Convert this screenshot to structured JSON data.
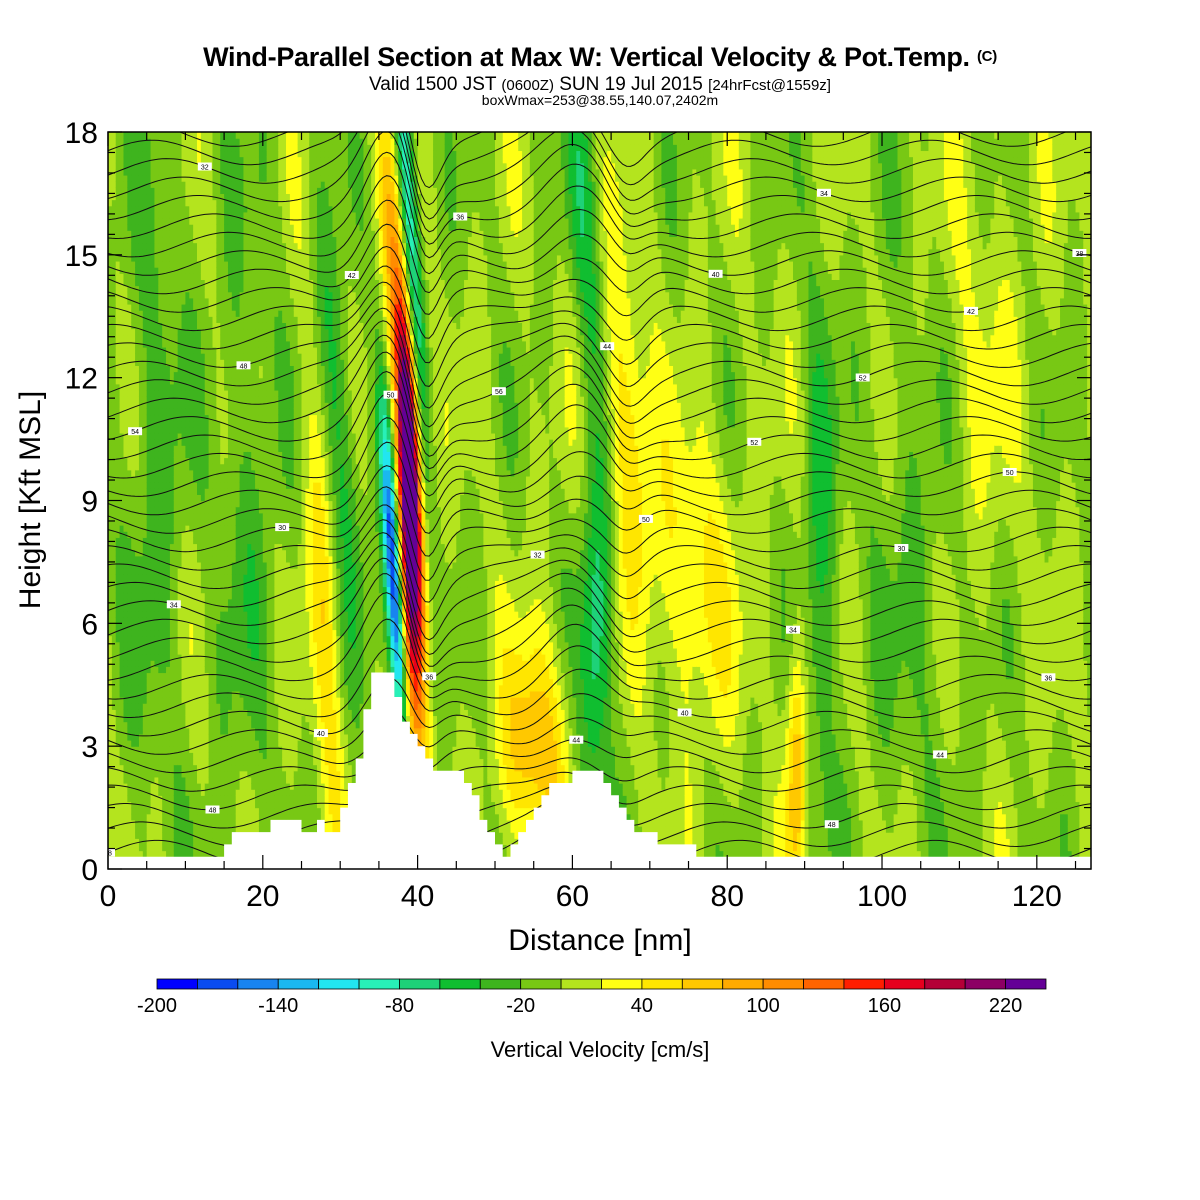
{
  "header": {
    "title": "Wind-Parallel Section at Max W: Vertical Velocity & Pot.Temp.",
    "title_mark": "(C)",
    "valid_prefix": "Valid 1500 JST",
    "valid_utc": "(0600Z)",
    "valid_date": "SUN 19 Jul 2015",
    "forecast": "[24hrFcst@1559z]",
    "box_info": "boxWmax=253@38.55,140.07,2402m"
  },
  "chart_data": {
    "type": "heatmap",
    "xlabel": "Distance [nm]",
    "ylabel": "Height [Kft MSL]",
    "xlim": [
      0,
      127
    ],
    "ylim": [
      0,
      18
    ],
    "x_ticks": [
      0,
      20,
      40,
      60,
      80,
      100,
      120
    ],
    "y_ticks": [
      0,
      3,
      6,
      9,
      12,
      15,
      18
    ],
    "colorbar": {
      "label": "Vertical Velocity [cm/s]",
      "min": -200,
      "max": 260,
      "step": 20,
      "tick_values": [
        -200,
        -140,
        -80,
        -20,
        40,
        100,
        160,
        220
      ],
      "colors": [
        "#0000ff",
        "#0a4cf0",
        "#1884f0",
        "#1ab8f0",
        "#22e6f0",
        "#28f0b8",
        "#1ed278",
        "#10be30",
        "#3eb41e",
        "#78c814",
        "#b4e41e",
        "#ffff14",
        "#ffe600",
        "#ffc800",
        "#ffaa00",
        "#ff8c00",
        "#ff6400",
        "#ff1e00",
        "#e6001e",
        "#b40037",
        "#8c0064",
        "#640096"
      ]
    },
    "terrain": [
      [
        0,
        0.3
      ],
      [
        15,
        0.3
      ],
      [
        15,
        0.6
      ],
      [
        16,
        0.6
      ],
      [
        16,
        0.9
      ],
      [
        21,
        0.9
      ],
      [
        21,
        1.2
      ],
      [
        25,
        1.2
      ],
      [
        25,
        0.9
      ],
      [
        27,
        0.9
      ],
      [
        27,
        1.2
      ],
      [
        28,
        1.2
      ],
      [
        28,
        0.9
      ],
      [
        30,
        0.9
      ],
      [
        30,
        1.5
      ],
      [
        31,
        1.5
      ],
      [
        31,
        2.1
      ],
      [
        32,
        2.1
      ],
      [
        32,
        2.7
      ],
      [
        33,
        2.7
      ],
      [
        33,
        3.9
      ],
      [
        34,
        3.9
      ],
      [
        34,
        4.8
      ],
      [
        37,
        4.8
      ],
      [
        37,
        4.2
      ],
      [
        38,
        4.2
      ],
      [
        38,
        3.6
      ],
      [
        39,
        3.6
      ],
      [
        39,
        3.3
      ],
      [
        40,
        3.3
      ],
      [
        40,
        3.0
      ],
      [
        41,
        3.0
      ],
      [
        41,
        2.7
      ],
      [
        42,
        2.7
      ],
      [
        42,
        2.4
      ],
      [
        46,
        2.4
      ],
      [
        46,
        2.1
      ],
      [
        47,
        2.1
      ],
      [
        47,
        1.8
      ],
      [
        48,
        1.8
      ],
      [
        48,
        1.2
      ],
      [
        49,
        1.2
      ],
      [
        49,
        0.9
      ],
      [
        50,
        0.9
      ],
      [
        50,
        0.6
      ],
      [
        51,
        0.6
      ],
      [
        51,
        0.3
      ],
      [
        52,
        0.3
      ],
      [
        52,
        0.6
      ],
      [
        53,
        0.6
      ],
      [
        53,
        0.9
      ],
      [
        54,
        0.9
      ],
      [
        54,
        1.2
      ],
      [
        55,
        1.2
      ],
      [
        55,
        1.5
      ],
      [
        56,
        1.5
      ],
      [
        56,
        1.8
      ],
      [
        57,
        1.8
      ],
      [
        57,
        2.1
      ],
      [
        60,
        2.1
      ],
      [
        60,
        2.4
      ],
      [
        64,
        2.4
      ],
      [
        64,
        2.1
      ],
      [
        65,
        2.1
      ],
      [
        65,
        1.8
      ],
      [
        66,
        1.8
      ],
      [
        66,
        1.5
      ],
      [
        67,
        1.5
      ],
      [
        67,
        1.2
      ],
      [
        68,
        1.2
      ],
      [
        68,
        0.9
      ],
      [
        71,
        0.9
      ],
      [
        71,
        0.6
      ],
      [
        76,
        0.6
      ],
      [
        76,
        0.3
      ],
      [
        127,
        0.3
      ]
    ],
    "theta_labels": [
      "48",
      "48",
      "48",
      "48",
      "44",
      "44",
      "40",
      "40",
      "36",
      "36",
      "34",
      "34",
      "32",
      "30",
      "30",
      "50",
      "50",
      "50",
      "52",
      "54",
      "56",
      "52",
      "48",
      "44",
      "42",
      "42",
      "40",
      "38",
      "36",
      "34",
      "32",
      "30"
    ]
  }
}
